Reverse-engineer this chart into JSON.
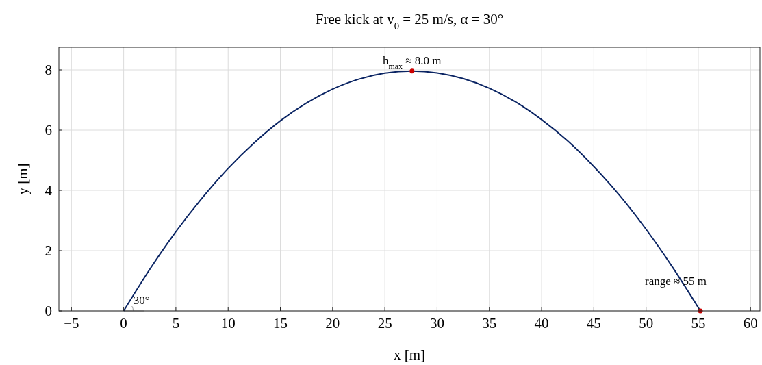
{
  "chart_data": {
    "type": "line",
    "title": "Free kick at v$_{0}$ = 25 m/s, α = 30°",
    "xlabel": "x [m]",
    "ylabel": "y [m]",
    "xlim": [
      -6.2,
      60.9
    ],
    "xticks": [
      -5,
      0,
      5,
      10,
      15,
      20,
      25,
      30,
      35,
      40,
      45,
      50,
      55,
      60
    ],
    "ylim": [
      0,
      8.75
    ],
    "yticks": [
      0,
      2,
      4,
      6,
      8
    ],
    "grid": true,
    "series": [
      {
        "color": "#0a2463",
        "x": [
          0,
          2.5,
          5,
          7.5,
          10,
          12.5,
          15,
          17.5,
          20,
          22.5,
          25,
          27.6,
          30,
          32.5,
          35,
          37.5,
          40,
          42.5,
          45,
          47.5,
          50,
          52.5,
          55.2
        ],
        "values": [
          0,
          1.38,
          2.63,
          3.74,
          4.73,
          5.58,
          6.31,
          6.9,
          7.36,
          7.69,
          7.89,
          7.96,
          7.9,
          7.71,
          7.39,
          6.94,
          6.35,
          5.64,
          4.79,
          3.82,
          2.71,
          1.47,
          0
        ]
      },
      {
        "type": "scatter",
        "color": "#cc0000",
        "marker": "circle",
        "x": [
          27.6,
          55.2
        ],
        "values": [
          7.96,
          0
        ]
      }
    ],
    "annotations": [
      {
        "text": "h$_{max}$ ≈ 8.0 m",
        "x": 27.6,
        "y": 7.96
      },
      {
        "text": "range ≈ 55 m",
        "x": 55.2,
        "y": 0
      },
      {
        "text": "30°",
        "x": 0,
        "y": 0
      }
    ]
  }
}
